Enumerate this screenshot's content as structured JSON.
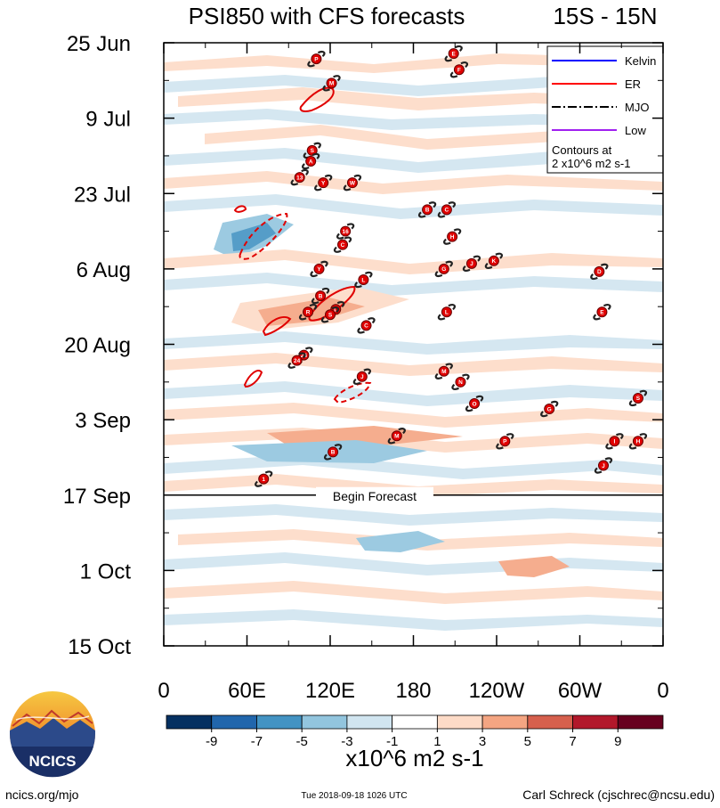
{
  "chart_data": {
    "type": "heatmap",
    "title": "PSI850 with CFS forecasts",
    "region_label": "15S - 15N",
    "x_ticks": [
      {
        "lon": 0,
        "label": "0"
      },
      {
        "lon": 60,
        "label": "60E"
      },
      {
        "lon": 120,
        "label": "120E"
      },
      {
        "lon": 180,
        "label": "180"
      },
      {
        "lon": 240,
        "label": "120W"
      },
      {
        "lon": 300,
        "label": "60W"
      },
      {
        "lon": 360,
        "label": "0"
      }
    ],
    "y_ticks": [
      {
        "day": 0,
        "label": "25 Jun"
      },
      {
        "day": 14,
        "label": "9 Jul"
      },
      {
        "day": 28,
        "label": "23 Jul"
      },
      {
        "day": 42,
        "label": "6 Aug"
      },
      {
        "day": 56,
        "label": "20 Aug"
      },
      {
        "day": 70,
        "label": "3 Sep"
      },
      {
        "day": 84,
        "label": "17 Sep"
      },
      {
        "day": 98,
        "label": "1 Oct"
      },
      {
        "day": 112,
        "label": "15 Oct"
      }
    ],
    "forecast_start_day": 84,
    "forecast_label": "Begin Forecast",
    "legend": {
      "entries": [
        {
          "label": "Kelvin",
          "color": "#0000ff",
          "dash": "solid"
        },
        {
          "label": "ER",
          "color": "#ff0000",
          "dash": "solid"
        },
        {
          "label": "MJO",
          "color": "#000000",
          "dash": "dashdot"
        },
        {
          "label": "Low",
          "color": "#a020f0",
          "dash": "solid"
        }
      ],
      "note_line1": "Contours at",
      "note_line2": "2 x10^6 m2 s-1"
    },
    "colorbar": {
      "colors": [
        "#053061",
        "#2166ac",
        "#4393c3",
        "#92c5de",
        "#d1e5f0",
        "#ffffff",
        "#fddbc7",
        "#f4a582",
        "#d6604d",
        "#b2182b",
        "#67001f"
      ],
      "tick_labels": [
        "-9",
        "-7",
        "-5",
        "-3",
        "-1",
        "1",
        "3",
        "5",
        "7",
        "9"
      ],
      "units": "x10^6 m2 s-1"
    },
    "storms": [
      {
        "lon": 110,
        "day": 3,
        "label": "P"
      },
      {
        "lon": 121,
        "day": 7.5,
        "label": "M"
      },
      {
        "lon": 209,
        "day": 2,
        "label": "E"
      },
      {
        "lon": 213,
        "day": 5,
        "label": "F"
      },
      {
        "lon": 107,
        "day": 20,
        "label": "S"
      },
      {
        "lon": 106,
        "day": 22,
        "label": "A"
      },
      {
        "lon": 98,
        "day": 25,
        "label": "13"
      },
      {
        "lon": 115,
        "day": 26,
        "label": "Y"
      },
      {
        "lon": 136,
        "day": 26,
        "label": "W"
      },
      {
        "lon": 190,
        "day": 31,
        "label": "B"
      },
      {
        "lon": 204,
        "day": 31,
        "label": "C"
      },
      {
        "lon": 131,
        "day": 35,
        "label": "16"
      },
      {
        "lon": 129,
        "day": 37.5,
        "label": "C"
      },
      {
        "lon": 208,
        "day": 36,
        "label": "H"
      },
      {
        "lon": 112,
        "day": 42,
        "label": "Y"
      },
      {
        "lon": 202,
        "day": 42,
        "label": "G"
      },
      {
        "lon": 222,
        "day": 41,
        "label": "J"
      },
      {
        "lon": 238,
        "day": 40.5,
        "label": "K"
      },
      {
        "lon": 314,
        "day": 42.5,
        "label": "D"
      },
      {
        "lon": 144,
        "day": 44,
        "label": "L"
      },
      {
        "lon": 113,
        "day": 47,
        "label": "B"
      },
      {
        "lon": 104,
        "day": 50,
        "label": "R"
      },
      {
        "lon": 124,
        "day": 49.5,
        "label": "L"
      },
      {
        "lon": 120,
        "day": 50.5,
        "label": "S"
      },
      {
        "lon": 146,
        "day": 52.5,
        "label": "C"
      },
      {
        "lon": 204,
        "day": 50,
        "label": "L"
      },
      {
        "lon": 316,
        "day": 50,
        "label": "E"
      },
      {
        "lon": 101,
        "day": 58,
        "label": "24"
      },
      {
        "lon": 96,
        "day": 59,
        "label": "24"
      },
      {
        "lon": 143,
        "day": 62,
        "label": "J"
      },
      {
        "lon": 202,
        "day": 61,
        "label": "M"
      },
      {
        "lon": 214,
        "day": 63,
        "label": "N"
      },
      {
        "lon": 224,
        "day": 67,
        "label": "O"
      },
      {
        "lon": 278,
        "day": 68,
        "label": "G"
      },
      {
        "lon": 342,
        "day": 66,
        "label": "S"
      },
      {
        "lon": 168,
        "day": 73,
        "label": "M"
      },
      {
        "lon": 246,
        "day": 74,
        "label": "P"
      },
      {
        "lon": 325,
        "day": 74,
        "label": "I"
      },
      {
        "lon": 342,
        "day": 74,
        "label": "H"
      },
      {
        "lon": 122,
        "day": 76,
        "label": "B"
      },
      {
        "lon": 317,
        "day": 78.5,
        "label": "J"
      },
      {
        "lon": 72,
        "day": 81,
        "label": "1"
      }
    ]
  },
  "footer": {
    "logo_text": "NCICS",
    "url_text": "ncics.org/mjo",
    "timestamp": "Tue 2018-09-18 1026 UTC",
    "credit": "Carl Schreck (cjschrec@ncsu.edu)"
  }
}
